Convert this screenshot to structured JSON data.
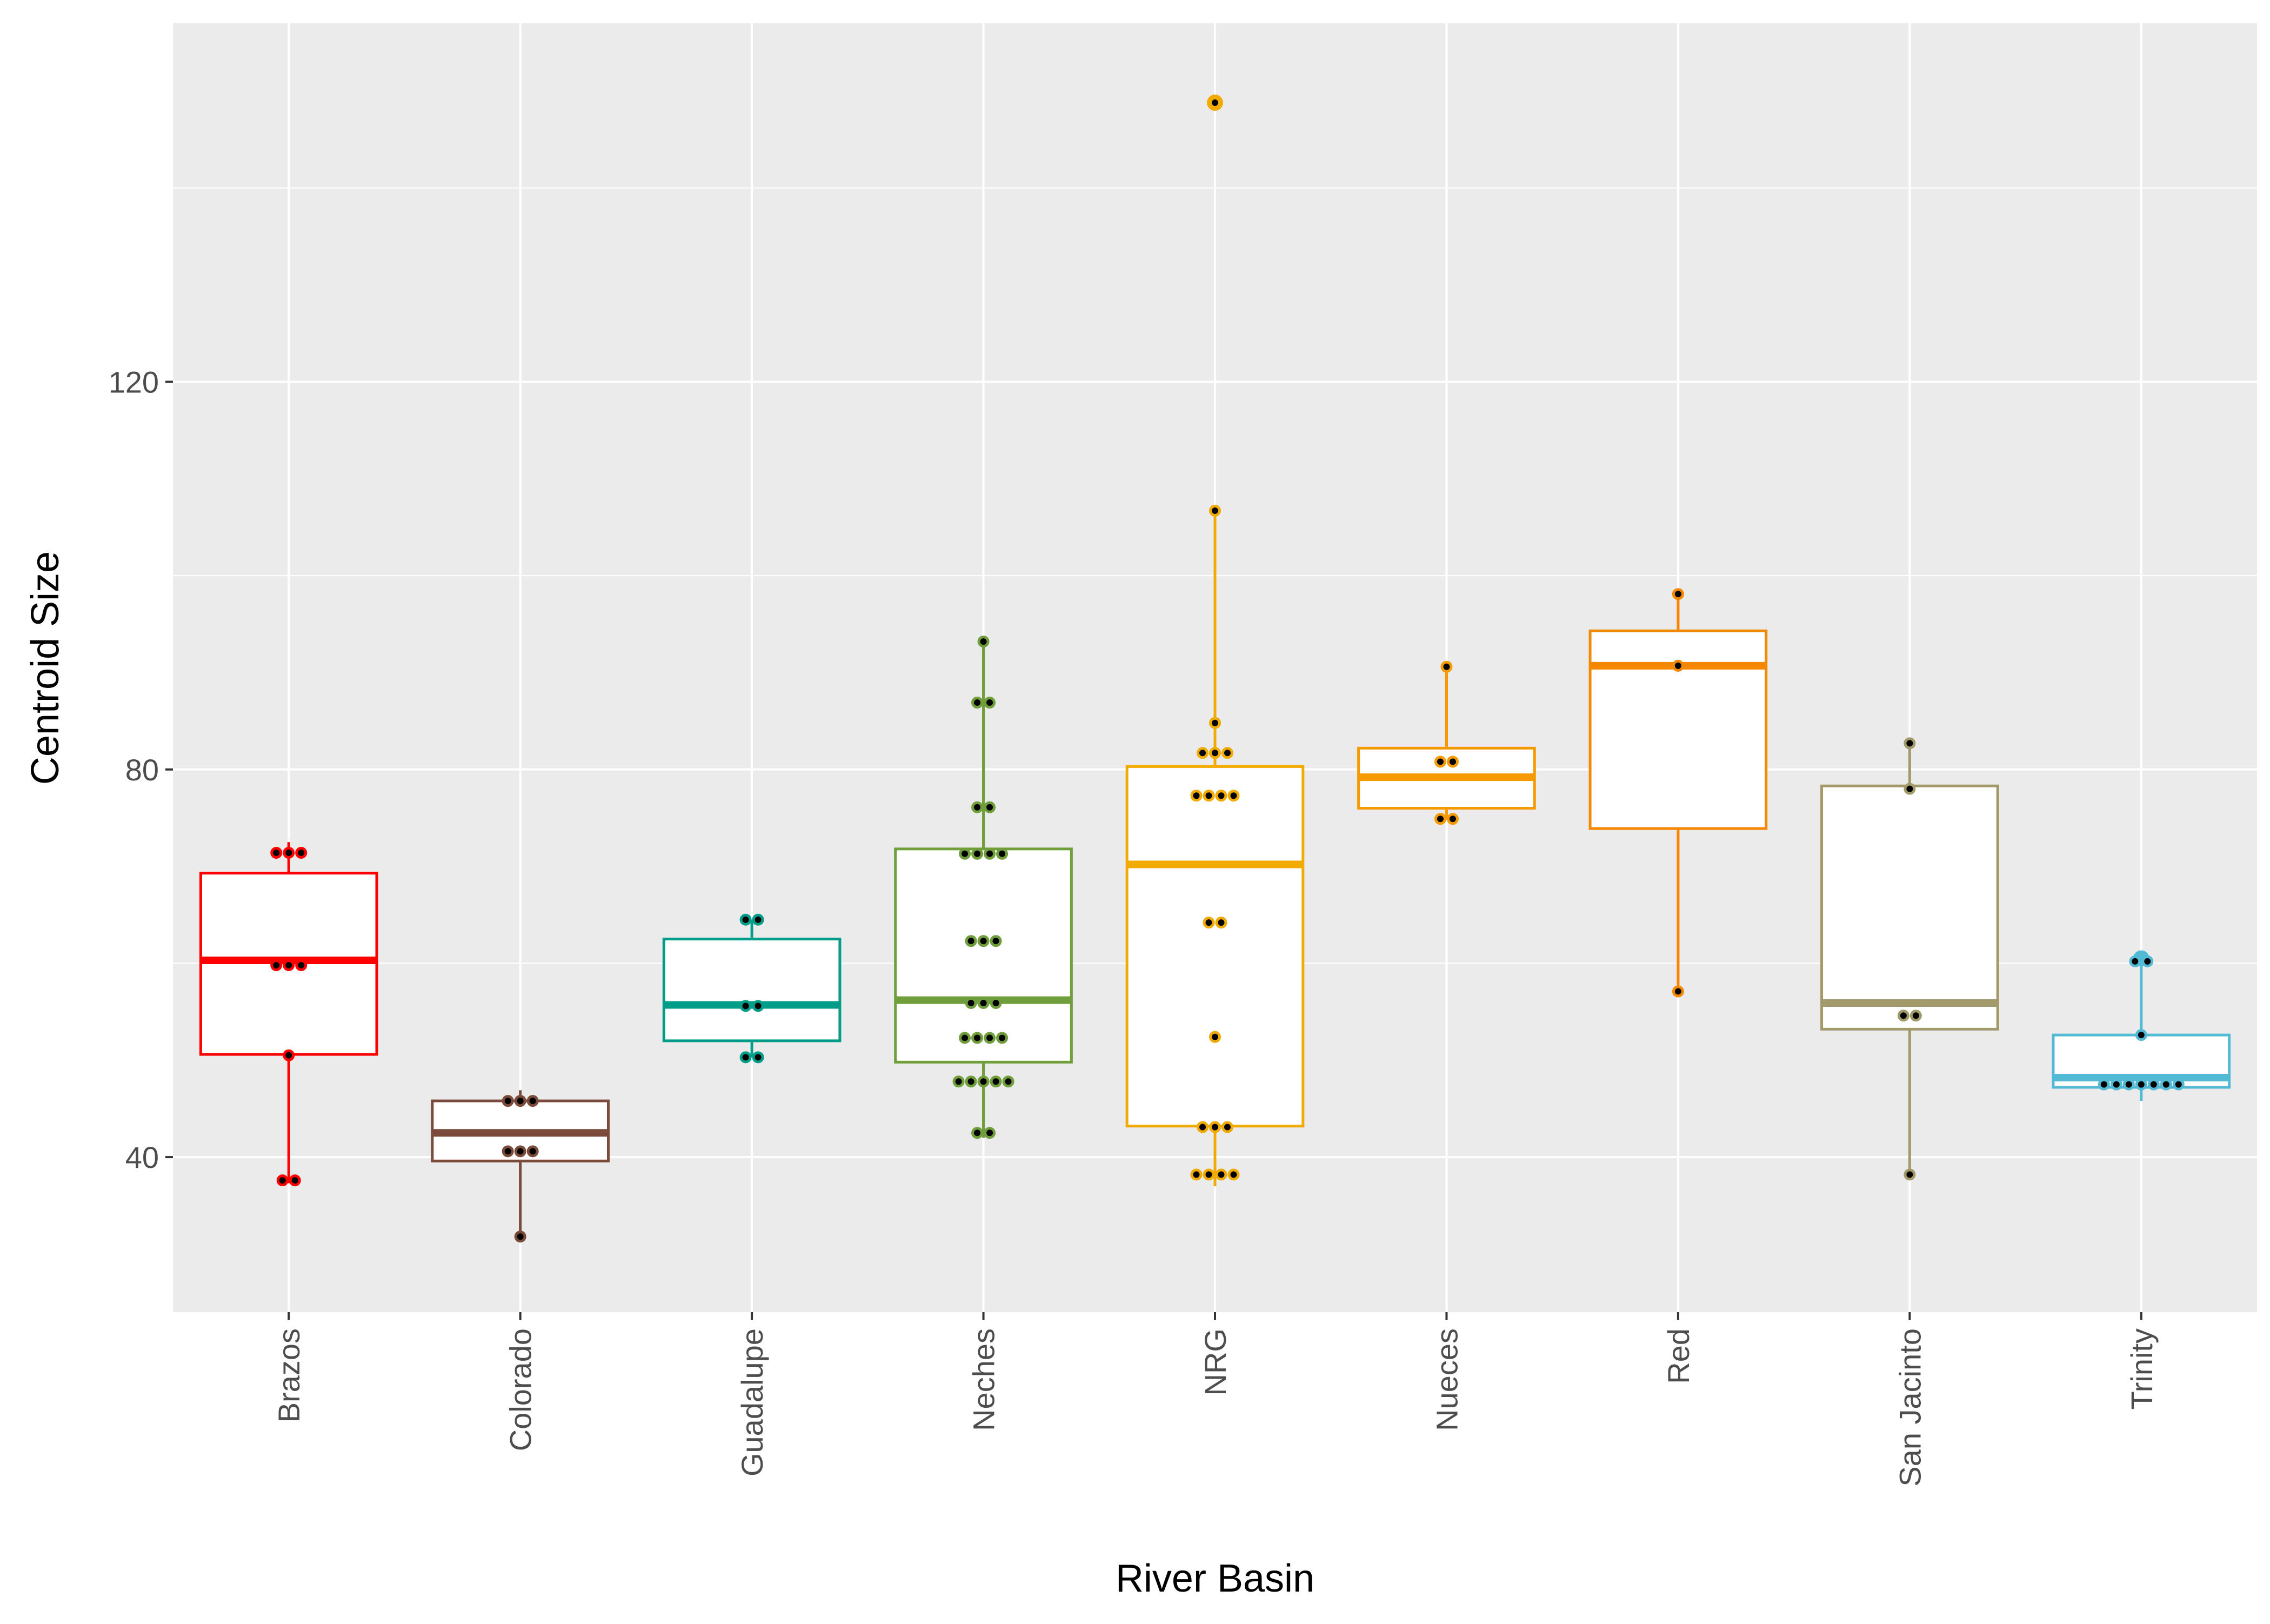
{
  "chart_data": {
    "type": "box",
    "xlabel": "River Basin",
    "ylabel": "Centroid Size",
    "ylim": [
      24,
      157
    ],
    "yticks": [
      40,
      80,
      120
    ],
    "ytick_labels": [
      "40",
      "80",
      "120"
    ],
    "grid": true,
    "legend": "none",
    "categories": [
      "Brazos",
      "Colorado",
      "Guadalupe",
      "Neches",
      "NRG",
      "Nueces",
      "Red",
      "San Jacinto",
      "Trinity"
    ],
    "colors": [
      "#FF0000",
      "#7A4A3A",
      "#009E89",
      "#6F9E3A",
      "#F0AA00",
      "#F59A00",
      "#F58800",
      "#A29A6A",
      "#52BAD5"
    ],
    "boxes": [
      {
        "min": 37.3,
        "q1": 50.6,
        "median": 60.3,
        "q3": 69.3,
        "max": 72.5
      },
      {
        "min": 31.5,
        "q1": 39.6,
        "median": 42.5,
        "q3": 45.8,
        "max": 46.9
      },
      {
        "min": 50.3,
        "q1": 52.0,
        "median": 55.7,
        "q3": 62.5,
        "max": 64.5
      },
      {
        "min": 42.0,
        "q1": 49.8,
        "median": 56.2,
        "q3": 71.8,
        "max": 93.3
      },
      {
        "min": 37.0,
        "q1": 43.2,
        "median": 70.2,
        "q3": 80.3,
        "max": 106.9
      },
      {
        "min": 74.8,
        "q1": 76.0,
        "median": 79.2,
        "q3": 82.2,
        "max": 90.8
      },
      {
        "min": 57.0,
        "q1": 73.9,
        "median": 90.7,
        "q3": 94.3,
        "max": 98.2
      },
      {
        "min": 38.3,
        "q1": 53.2,
        "median": 55.9,
        "q3": 78.3,
        "max": 82.7
      },
      {
        "min": 45.8,
        "q1": 47.2,
        "median": 48.2,
        "q3": 52.6,
        "max": 61.2
      }
    ],
    "outliers": [
      {
        "category": "NRG",
        "value": 148.8
      },
      {
        "category": "Trinity",
        "value": 60.5
      }
    ],
    "points": [
      {
        "category": "Brazos",
        "values": [
          71.4,
          71.4,
          71.4,
          59.8,
          59.8,
          59.8,
          50.5,
          37.6,
          37.6
        ]
      },
      {
        "category": "Colorado",
        "values": [
          45.8,
          45.8,
          45.8,
          40.6,
          40.6,
          40.6,
          31.8
        ]
      },
      {
        "category": "Guadalupe",
        "values": [
          64.5,
          64.5,
          55.6,
          55.6,
          50.3,
          50.3
        ]
      },
      {
        "category": "Neches",
        "values": [
          93.2,
          86.9,
          86.9,
          76.1,
          76.1,
          71.3,
          71.3,
          71.3,
          71.3,
          62.3,
          62.3,
          62.3,
          55.9,
          55.9,
          55.9,
          52.3,
          52.3,
          52.3,
          52.3,
          47.8,
          47.8,
          47.8,
          47.8,
          47.8,
          42.5,
          42.5
        ]
      },
      {
        "category": "NRG",
        "values": [
          148.8,
          106.7,
          84.8,
          81.7,
          81.7,
          81.7,
          77.3,
          77.3,
          77.3,
          77.3,
          64.2,
          64.2,
          52.4,
          43.1,
          43.1,
          43.1,
          38.2,
          38.2,
          38.2,
          38.2
        ]
      },
      {
        "category": "Nueces",
        "values": [
          90.6,
          80.8,
          80.8,
          74.9,
          74.9
        ]
      },
      {
        "category": "Red",
        "values": [
          98.1,
          90.7,
          57.1
        ]
      },
      {
        "category": "San Jacinto",
        "values": [
          82.7,
          78.0,
          54.6,
          54.6,
          38.2
        ]
      },
      {
        "category": "Trinity",
        "values": [
          60.2,
          60.2,
          52.6,
          47.5,
          47.5,
          47.5,
          47.5,
          47.5,
          47.5,
          47.5
        ]
      }
    ]
  }
}
